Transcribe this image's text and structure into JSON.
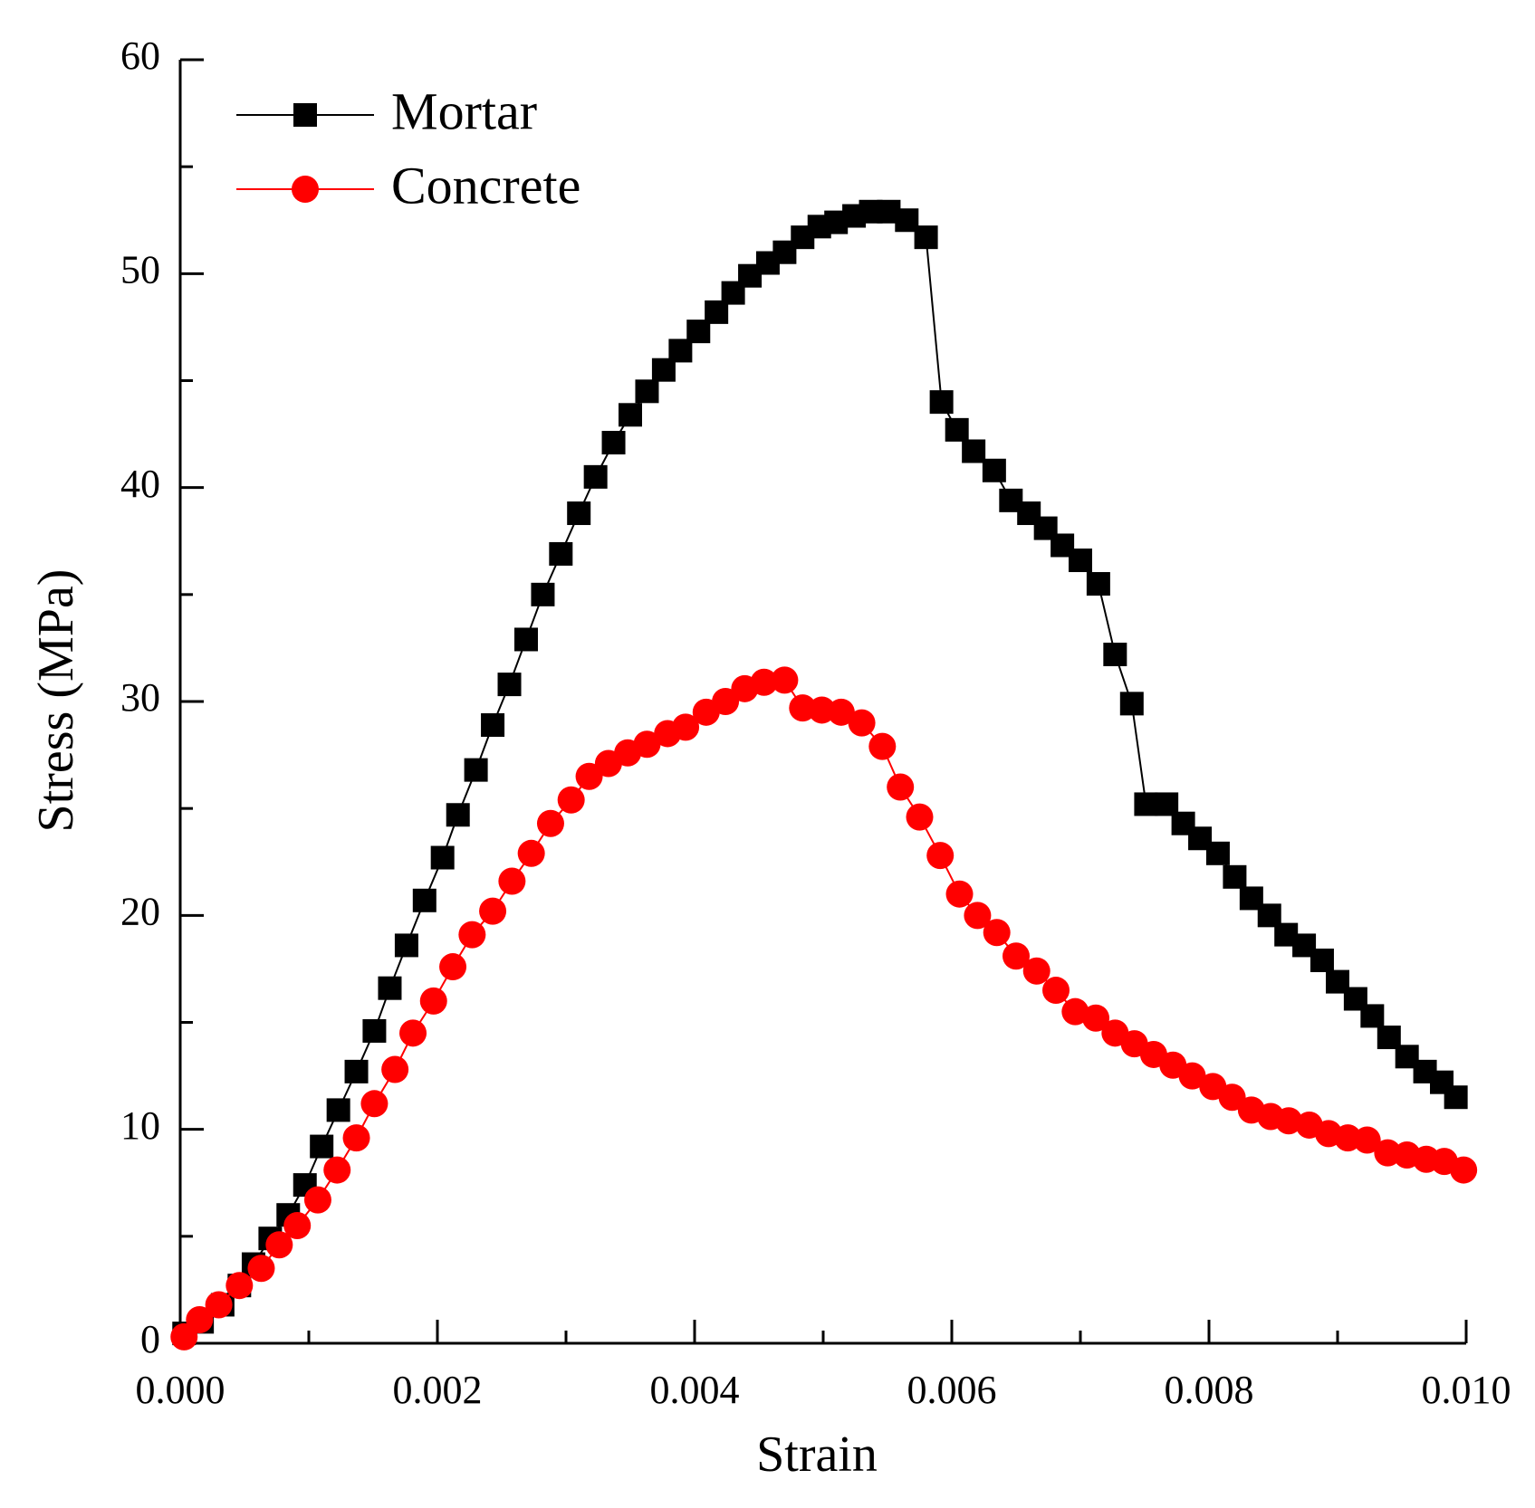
{
  "chart_data": {
    "type": "line",
    "xlabel": "Strain",
    "ylabel": "Stress (MPa)",
    "xlim": [
      0,
      0.01
    ],
    "ylim": [
      0,
      60
    ],
    "xticks": [
      {
        "value": 0,
        "label": "0.000"
      },
      {
        "value": 0.002,
        "label": "0.002"
      },
      {
        "value": 0.004,
        "label": "0.004"
      },
      {
        "value": 0.006,
        "label": "0.006"
      },
      {
        "value": 0.008,
        "label": "0.008"
      },
      {
        "value": 0.01,
        "label": "0.010"
      }
    ],
    "xminorticks": [
      0.001,
      0.003,
      0.005,
      0.007,
      0.009
    ],
    "yticks": [
      0,
      10,
      20,
      30,
      40,
      50,
      60
    ],
    "yminorticks": [
      5,
      15,
      25,
      35,
      45,
      55
    ],
    "legend": "upper left",
    "series": [
      {
        "name": "Mortar",
        "color": "#000000",
        "marker": "square",
        "x": [
          3e-05,
          0.00017,
          0.00033,
          0.00046,
          0.00057,
          0.0007,
          0.00084,
          0.00097,
          0.0011,
          0.00123,
          0.00137,
          0.00151,
          0.00163,
          0.00176,
          0.0019,
          0.00204,
          0.00216,
          0.0023,
          0.00243,
          0.00256,
          0.00269,
          0.00282,
          0.00296,
          0.0031,
          0.00323,
          0.00337,
          0.0035,
          0.00363,
          0.00376,
          0.00389,
          0.00403,
          0.00417,
          0.0043,
          0.00443,
          0.00457,
          0.0047,
          0.00484,
          0.00497,
          0.0051,
          0.00524,
          0.00537,
          0.00551,
          0.00565,
          0.0058,
          0.00592,
          0.00604,
          0.00617,
          0.00633,
          0.00646,
          0.0066,
          0.00673,
          0.00686,
          0.007,
          0.00714,
          0.00727,
          0.0074,
          0.00751,
          0.00767,
          0.0078,
          0.00793,
          0.00807,
          0.0082,
          0.00833,
          0.00847,
          0.0086,
          0.00874,
          0.00888,
          0.009,
          0.00914,
          0.00927,
          0.0094,
          0.00954,
          0.00968,
          0.00981,
          0.00992
        ],
        "values": [
          0.46,
          1.0,
          1.8,
          2.7,
          3.7,
          4.9,
          6.0,
          7.4,
          9.2,
          10.9,
          12.7,
          14.6,
          16.6,
          18.6,
          20.7,
          22.7,
          24.7,
          26.8,
          28.9,
          30.8,
          32.9,
          35.0,
          36.9,
          38.8,
          40.5,
          42.1,
          43.4,
          44.5,
          45.5,
          46.4,
          47.3,
          48.2,
          49.1,
          49.9,
          50.5,
          51.0,
          51.7,
          52.2,
          52.4,
          52.7,
          52.9,
          52.9,
          52.5,
          51.7,
          44.0,
          42.7,
          41.7,
          40.8,
          39.4,
          38.8,
          38.1,
          37.3,
          36.6,
          35.5,
          32.2,
          29.9,
          25.2,
          25.2,
          24.3,
          23.6,
          22.9,
          21.8,
          20.8,
          20.0,
          19.1,
          18.6,
          17.9,
          16.9,
          16.1,
          15.3,
          14.3,
          13.4,
          12.7,
          12.2,
          11.5
        ]
      },
      {
        "name": "Concrete",
        "color": "#ff0000",
        "marker": "circle",
        "x": [
          3e-05,
          0.00015,
          0.0003,
          0.00046,
          0.00063,
          0.00077,
          0.00091,
          0.00107,
          0.00122,
          0.00137,
          0.00151,
          0.00167,
          0.00181,
          0.00197,
          0.00212,
          0.00227,
          0.00243,
          0.00258,
          0.00273,
          0.00288,
          0.00304,
          0.00318,
          0.00333,
          0.00348,
          0.00363,
          0.00379,
          0.00393,
          0.00409,
          0.00424,
          0.00439,
          0.00454,
          0.0047,
          0.00484,
          0.00499,
          0.00514,
          0.0053,
          0.00546,
          0.0056,
          0.00575,
          0.00591,
          0.00606,
          0.0062,
          0.00635,
          0.0065,
          0.00666,
          0.00681,
          0.00696,
          0.00712,
          0.00727,
          0.00742,
          0.00757,
          0.00772,
          0.00787,
          0.00803,
          0.00818,
          0.00833,
          0.00848,
          0.00862,
          0.00878,
          0.00893,
          0.00908,
          0.00923,
          0.00939,
          0.00954,
          0.00969,
          0.00983,
          0.00998
        ],
        "values": [
          0.3,
          1.1,
          1.8,
          2.7,
          3.5,
          4.6,
          5.5,
          6.7,
          8.1,
          9.6,
          11.2,
          12.8,
          14.5,
          16.0,
          17.6,
          19.1,
          20.2,
          21.6,
          22.9,
          24.3,
          25.4,
          26.5,
          27.1,
          27.6,
          28.0,
          28.5,
          28.8,
          29.5,
          30.0,
          30.6,
          30.9,
          31.0,
          29.7,
          29.6,
          29.5,
          29.0,
          27.9,
          26.0,
          24.6,
          22.8,
          21.0,
          20.0,
          19.2,
          18.1,
          17.4,
          16.5,
          15.5,
          15.2,
          14.5,
          14.0,
          13.5,
          13.0,
          12.5,
          12.0,
          11.5,
          10.9,
          10.6,
          10.4,
          10.2,
          9.8,
          9.6,
          9.5,
          8.9,
          8.8,
          8.6,
          8.5,
          8.1
        ]
      }
    ]
  }
}
